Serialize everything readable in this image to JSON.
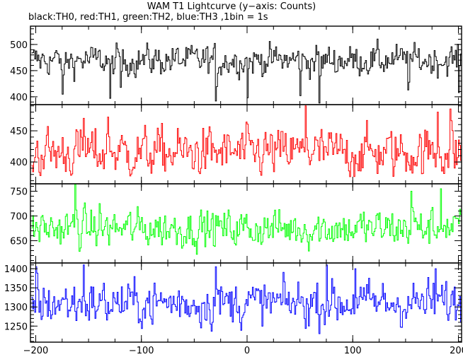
{
  "title": "WAM T1 Lightcurve (y−axis: Counts)",
  "subtitle": "black:TH0, red:TH1, green:TH2, blue:TH3 ,1bin = 1s",
  "chart_data": [
    {
      "type": "line",
      "panel": "TH0",
      "color": "#000000",
      "xlim": [
        -205,
        203
      ],
      "ylim": [
        385,
        535
      ],
      "yticks": [
        400,
        450,
        500
      ],
      "xticks": [
        -200,
        -100,
        0,
        100,
        200
      ],
      "mean": 470,
      "amplitude": 30,
      "dips": [
        [
          -175,
          405
        ],
        [
          -130,
          397
        ],
        [
          -120,
          418
        ],
        [
          -30,
          392
        ],
        [
          0,
          398
        ],
        [
          50,
          402
        ],
        [
          68,
          388
        ],
        [
          152,
          413
        ],
        [
          200,
          408
        ]
      ]
    },
    {
      "type": "line",
      "panel": "TH1",
      "color": "#ff0000",
      "xlim": [
        -205,
        203
      ],
      "ylim": [
        365,
        492
      ],
      "yticks": [
        400,
        450
      ],
      "xticks": [
        -200,
        -100,
        0,
        100,
        200
      ],
      "mean": 415,
      "amplitude": 40,
      "peaks": [
        [
          -155,
          470
        ],
        [
          -132,
          472
        ],
        [
          55,
          490
        ],
        [
          180,
          480
        ],
        [
          192,
          485
        ]
      ]
    },
    {
      "type": "line",
      "panel": "TH2",
      "color": "#00ff00",
      "xlim": [
        -205,
        203
      ],
      "ylim": [
        605,
        765
      ],
      "yticks": [
        650,
        700,
        750
      ],
      "xticks": [
        -200,
        -100,
        0,
        100,
        200
      ],
      "mean": 675,
      "amplitude": 40,
      "peaks": [
        [
          -163,
          765
        ],
        [
          -140,
          725
        ],
        [
          155,
          750
        ],
        [
          183,
          755
        ]
      ]
    },
    {
      "type": "line",
      "panel": "TH3",
      "color": "#0000ff",
      "xlim": [
        -205,
        203
      ],
      "ylim": [
        1208,
        1415
      ],
      "yticks": [
        1250,
        1300,
        1350,
        1400
      ],
      "xticks": [
        -200,
        -100,
        0,
        100,
        200
      ],
      "mean": 1310,
      "amplitude": 60,
      "peaks": [
        [
          -200,
          1405
        ],
        [
          -155,
          1410
        ],
        [
          -30,
          1405
        ],
        [
          75,
          1410
        ],
        [
          102,
          1400
        ],
        [
          178,
          1400
        ]
      ]
    }
  ]
}
